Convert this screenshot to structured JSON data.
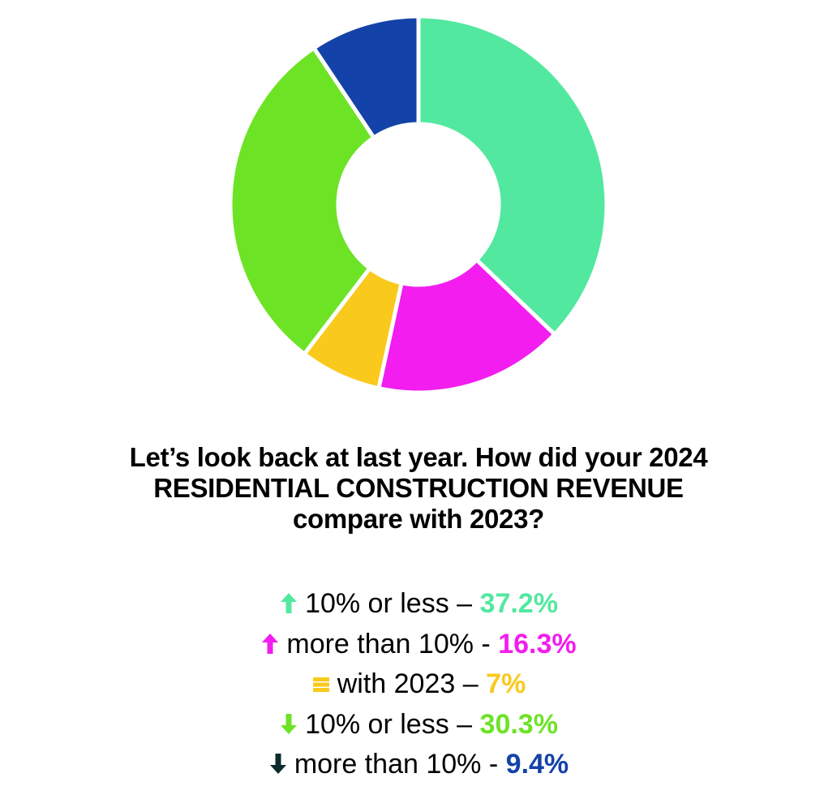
{
  "chart_data": {
    "type": "pie",
    "variant": "donut",
    "title": "Let’s look back at last year. How did your 2024 RESIDENTIAL CONSTRUCTION REVENUE compare with 2023?",
    "title_lines": [
      "Let’s look back at last year. How did your 2024",
      "RESIDENTIAL CONSTRUCTION REVENUE",
      "compare with 2023?"
    ],
    "start": "top",
    "direction": "clockwise",
    "slices": [
      {
        "label": "10% or less",
        "sep": "–",
        "value": 37.2,
        "value_label": "37.2%",
        "color": "#52E8A0",
        "icon": "arrow-up-icon",
        "icon_color": "#52E8A0"
      },
      {
        "label": "more than 10%",
        "sep": "-",
        "value": 16.3,
        "value_label": "16.3%",
        "color": "#F21DEE",
        "icon": "arrow-up-icon",
        "icon_color": "#F21DEE"
      },
      {
        "label": "with 2023",
        "sep": "–",
        "value": 7,
        "value_label": "7%",
        "color": "#F9C91C",
        "icon": "equal-bars-icon",
        "icon_color": "#F9C91C"
      },
      {
        "label": "10% or less",
        "sep": "–",
        "value": 30.3,
        "value_label": "30.3%",
        "color": "#6DE325",
        "icon": "arrow-down-icon",
        "icon_color": "#6DE325"
      },
      {
        "label": "more than 10%",
        "sep": "-",
        "value": 9.4,
        "value_label": "9.4%",
        "color": "#1342A8",
        "icon": "arrow-down-icon",
        "icon_color": "#0D2B2B"
      }
    ]
  }
}
